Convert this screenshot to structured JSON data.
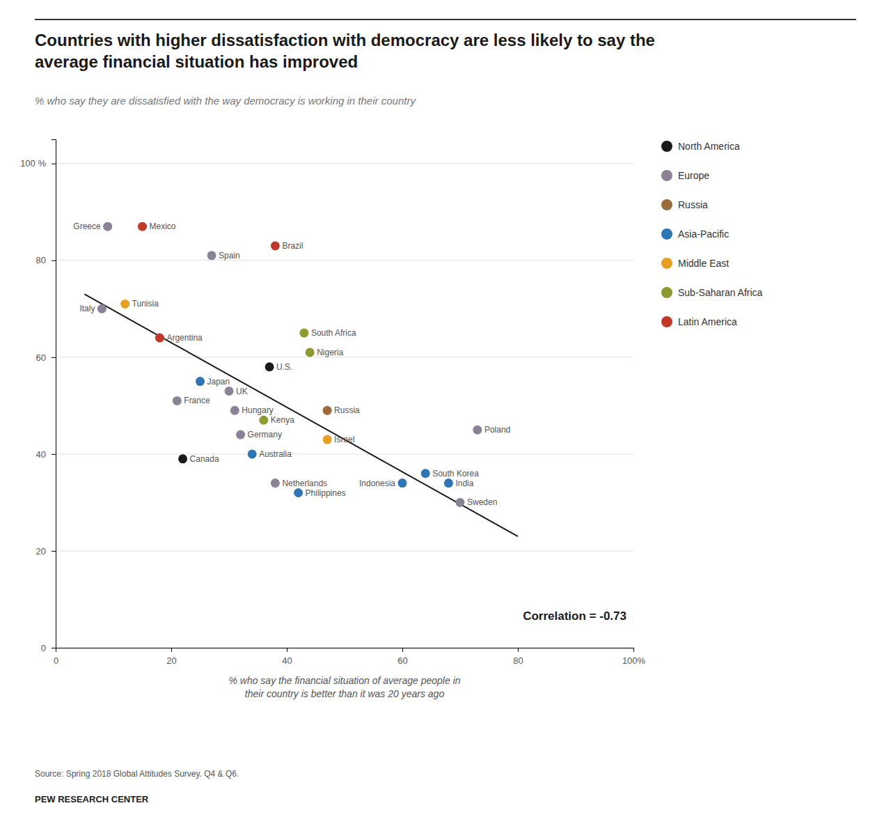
{
  "chart_data": {
    "type": "scatter",
    "title": "Countries with higher dissatisfaction with democracy are less likely to say the\naverage financial situation has improved",
    "subtitle": "% who say they are dissatisfied with the way democracy is working in their country",
    "x_label": "% who say the financial situation of average people in\ntheir country is better than it was 20 years ago",
    "source": "Source: Spring 2018 Global Attitudes Survey. Q4 & Q6.",
    "footer": "PEW RESEARCH CENTER",
    "annotation": "Correlation = -0.73",
    "series": [
      {
        "name": "North America",
        "color": "#1a1a1a",
        "labels": [
          "U.S.",
          "Canada"
        ],
        "x": [
          37,
          22
        ],
        "values": [
          58,
          39
        ]
      },
      {
        "name": "Europe",
        "color": "#8b8296",
        "labels": [
          "Greece",
          "Spain",
          "Italy",
          "UK",
          "France",
          "Hungary",
          "Germany",
          "Poland",
          "Netherlands",
          "Sweden"
        ],
        "x": [
          9,
          27,
          8,
          30,
          21,
          31,
          32,
          73,
          38,
          70
        ],
        "values": [
          87,
          81,
          70,
          53,
          51,
          49,
          44,
          45,
          34,
          30
        ]
      },
      {
        "name": "Russia",
        "color": "#9c6b3c",
        "labels": [
          "Russia"
        ],
        "x": [
          47
        ],
        "values": [
          49
        ]
      },
      {
        "name": "Asia-Pacific",
        "color": "#2e75b6",
        "labels": [
          "Japan",
          "Australia",
          "Indonesia",
          "Philippines",
          "South Korea",
          "India"
        ],
        "x": [
          25,
          34,
          60,
          42,
          64,
          68
        ],
        "values": [
          55,
          40,
          34,
          32,
          36,
          34
        ]
      },
      {
        "name": "Middle East",
        "color": "#e5a023",
        "labels": [
          "Tunisia",
          "Israel"
        ],
        "x": [
          12,
          47
        ],
        "values": [
          71,
          43
        ]
      },
      {
        "name": "Sub-Saharan Africa",
        "color": "#8d9a2e",
        "labels": [
          "South Africa",
          "Nigeria",
          "Kenya"
        ],
        "x": [
          43,
          44,
          36
        ],
        "values": [
          65,
          61,
          47
        ]
      },
      {
        "name": "Latin America",
        "color": "#c0392b",
        "labels": [
          "Mexico",
          "Brazil",
          "Argentina"
        ],
        "x": [
          15,
          38,
          18
        ],
        "values": [
          87,
          83,
          64
        ]
      }
    ],
    "trendline": {
      "x": [
        5,
        80
      ],
      "values": [
        73,
        23
      ]
    },
    "xlim": [
      0,
      100
    ],
    "ylim": [
      0,
      105
    ],
    "xticks": [
      0,
      20,
      40,
      60,
      80,
      {
        "value": 100,
        "label": "100%"
      }
    ],
    "yticks": [
      0,
      20,
      40,
      60,
      80,
      {
        "value": 100,
        "label": "100 %"
      }
    ],
    "grid": "y",
    "legend": "right"
  }
}
